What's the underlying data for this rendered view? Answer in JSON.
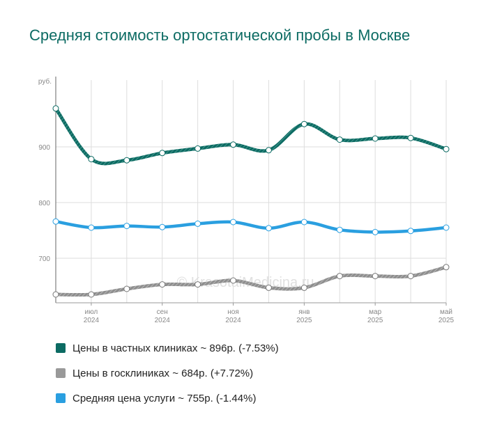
{
  "chart_data": {
    "type": "line",
    "title": "Средняя стоимость ортостатической пробы в Москве",
    "ylabel": "руб.",
    "ylim": [
      620,
      1020
    ],
    "yticks": [
      700,
      800,
      900
    ],
    "grid": true,
    "legend_position": "bottom-left",
    "watermark": "© KrasotaiMedicina.ru",
    "x_index": [
      0,
      1,
      2,
      3,
      4,
      5,
      6,
      7,
      8,
      9,
      10,
      11
    ],
    "x_tick_labels": [
      {
        "index": 1,
        "month": "июл",
        "year": "2024"
      },
      {
        "index": 3,
        "month": "сен",
        "year": "2024"
      },
      {
        "index": 5,
        "month": "ноя",
        "year": "2024"
      },
      {
        "index": 7,
        "month": "янв",
        "year": "2025"
      },
      {
        "index": 9,
        "month": "мар",
        "year": "2025"
      },
      {
        "index": 11,
        "month": "май",
        "year": "2025"
      }
    ],
    "series": [
      {
        "name": "Цены в частных клиниках",
        "legend": "Цены в частных клиниках ~ 896р. (-7.53%)",
        "color": "#0c6b63",
        "style": "hatched",
        "values": [
          969,
          878,
          876,
          889,
          897,
          904,
          894,
          941,
          913,
          915,
          916,
          896
        ]
      },
      {
        "name": "Цены в госклиниках",
        "legend": "Цены в госклиниках ~ 684р. (+7.72%)",
        "color": "#999999",
        "style": "hatched",
        "values": [
          635,
          635,
          645,
          653,
          653,
          660,
          647,
          647,
          668,
          668,
          668,
          684
        ]
      },
      {
        "name": "Средняя цена услуги",
        "legend": "Средняя цена услуги ~ 755р. (-1.44%)",
        "color": "#2a9fe0",
        "style": "solid",
        "values": [
          766,
          755,
          758,
          756,
          762,
          765,
          754,
          765,
          751,
          747,
          749,
          755
        ]
      }
    ]
  }
}
